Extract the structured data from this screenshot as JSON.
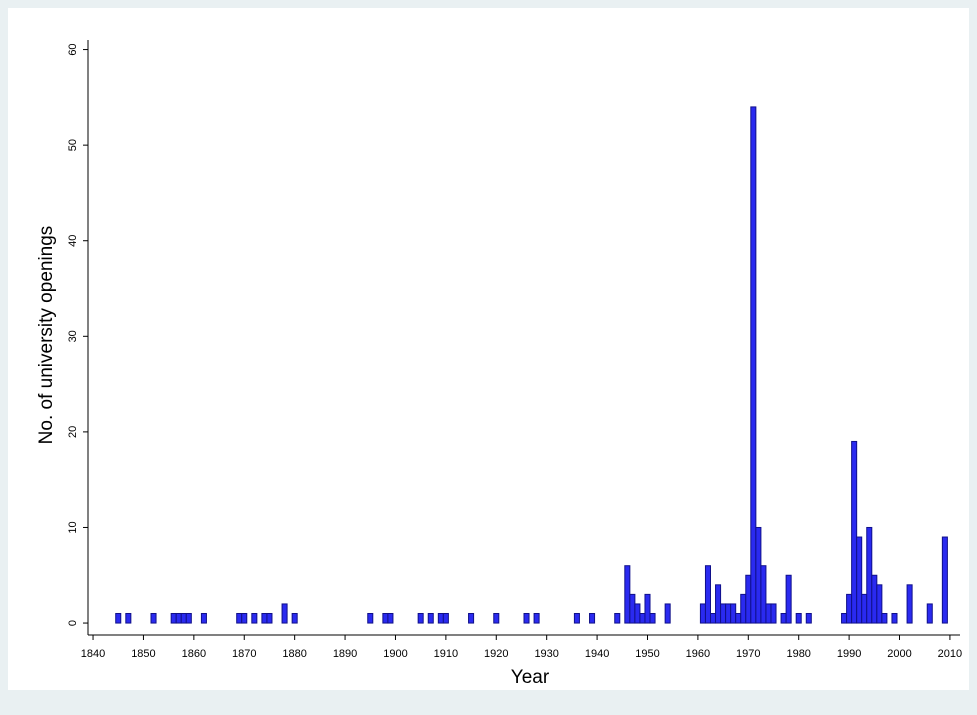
{
  "chart_data": {
    "type": "bar",
    "x_label": "Year",
    "y_label": "No. of university openings",
    "x": [
      1845,
      1847,
      1852,
      1856,
      1857,
      1858,
      1859,
      1862,
      1869,
      1870,
      1872,
      1874,
      1875,
      1878,
      1880,
      1895,
      1898,
      1899,
      1905,
      1907,
      1909,
      1910,
      1915,
      1920,
      1926,
      1928,
      1936,
      1939,
      1944,
      1946,
      1947,
      1948,
      1949,
      1950,
      1951,
      1954,
      1961,
      1962,
      1963,
      1964,
      1965,
      1966,
      1967,
      1968,
      1969,
      1970,
      1971,
      1972,
      1973,
      1974,
      1975,
      1977,
      1978,
      1980,
      1982,
      1989,
      1990,
      1991,
      1992,
      1993,
      1994,
      1995,
      1996,
      1997,
      1999,
      2002,
      2006,
      2009
    ],
    "values": [
      1,
      1,
      1,
      1,
      1,
      1,
      1,
      1,
      1,
      1,
      1,
      1,
      1,
      2,
      1,
      1,
      1,
      1,
      1,
      1,
      1,
      1,
      1,
      1,
      1,
      1,
      1,
      1,
      1,
      6,
      3,
      2,
      1,
      3,
      1,
      2,
      2,
      6,
      1,
      4,
      2,
      2,
      2,
      1,
      3,
      5,
      54,
      10,
      6,
      2,
      2,
      1,
      5,
      1,
      1,
      1,
      3,
      19,
      9,
      3,
      10,
      5,
      4,
      1,
      1,
      4,
      2,
      9
    ],
    "color": "#2a2af0",
    "xlim": [
      1839,
      2012
    ],
    "ylim": [
      -1.25,
      61
    ],
    "xticks": [
      1840,
      1850,
      1860,
      1870,
      1880,
      1890,
      1900,
      1910,
      1920,
      1930,
      1940,
      1950,
      1960,
      1970,
      1980,
      1990,
      2000,
      2010
    ],
    "yticks": [
      0,
      10,
      20,
      30,
      40,
      50,
      60
    ]
  }
}
